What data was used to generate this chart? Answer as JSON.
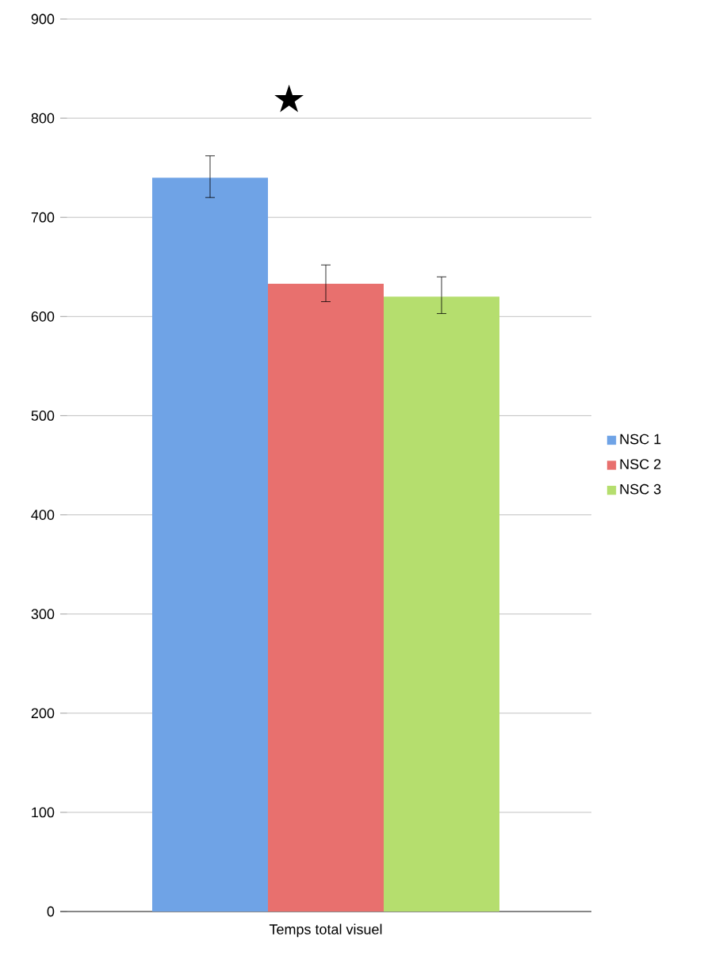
{
  "chart_data": {
    "type": "bar",
    "categories": [
      "Temps total visuel"
    ],
    "series": [
      {
        "name": "NSC 1",
        "color": "#6fa3e6",
        "values": [
          740
        ],
        "errors": [
          [
            720,
            762
          ]
        ]
      },
      {
        "name": "NSC 2",
        "color": "#e8706e",
        "values": [
          633
        ],
        "errors": [
          [
            615,
            652
          ]
        ]
      },
      {
        "name": "NSC 3",
        "color": "#b5de6e",
        "values": [
          620
        ],
        "errors": [
          [
            603,
            640
          ]
        ]
      }
    ],
    "ylim": [
      0,
      900
    ],
    "yticks": [
      0,
      100,
      200,
      300,
      400,
      500,
      600,
      700,
      800,
      900
    ],
    "grid": "y",
    "legend": "right",
    "annotations": [
      "★"
    ]
  }
}
